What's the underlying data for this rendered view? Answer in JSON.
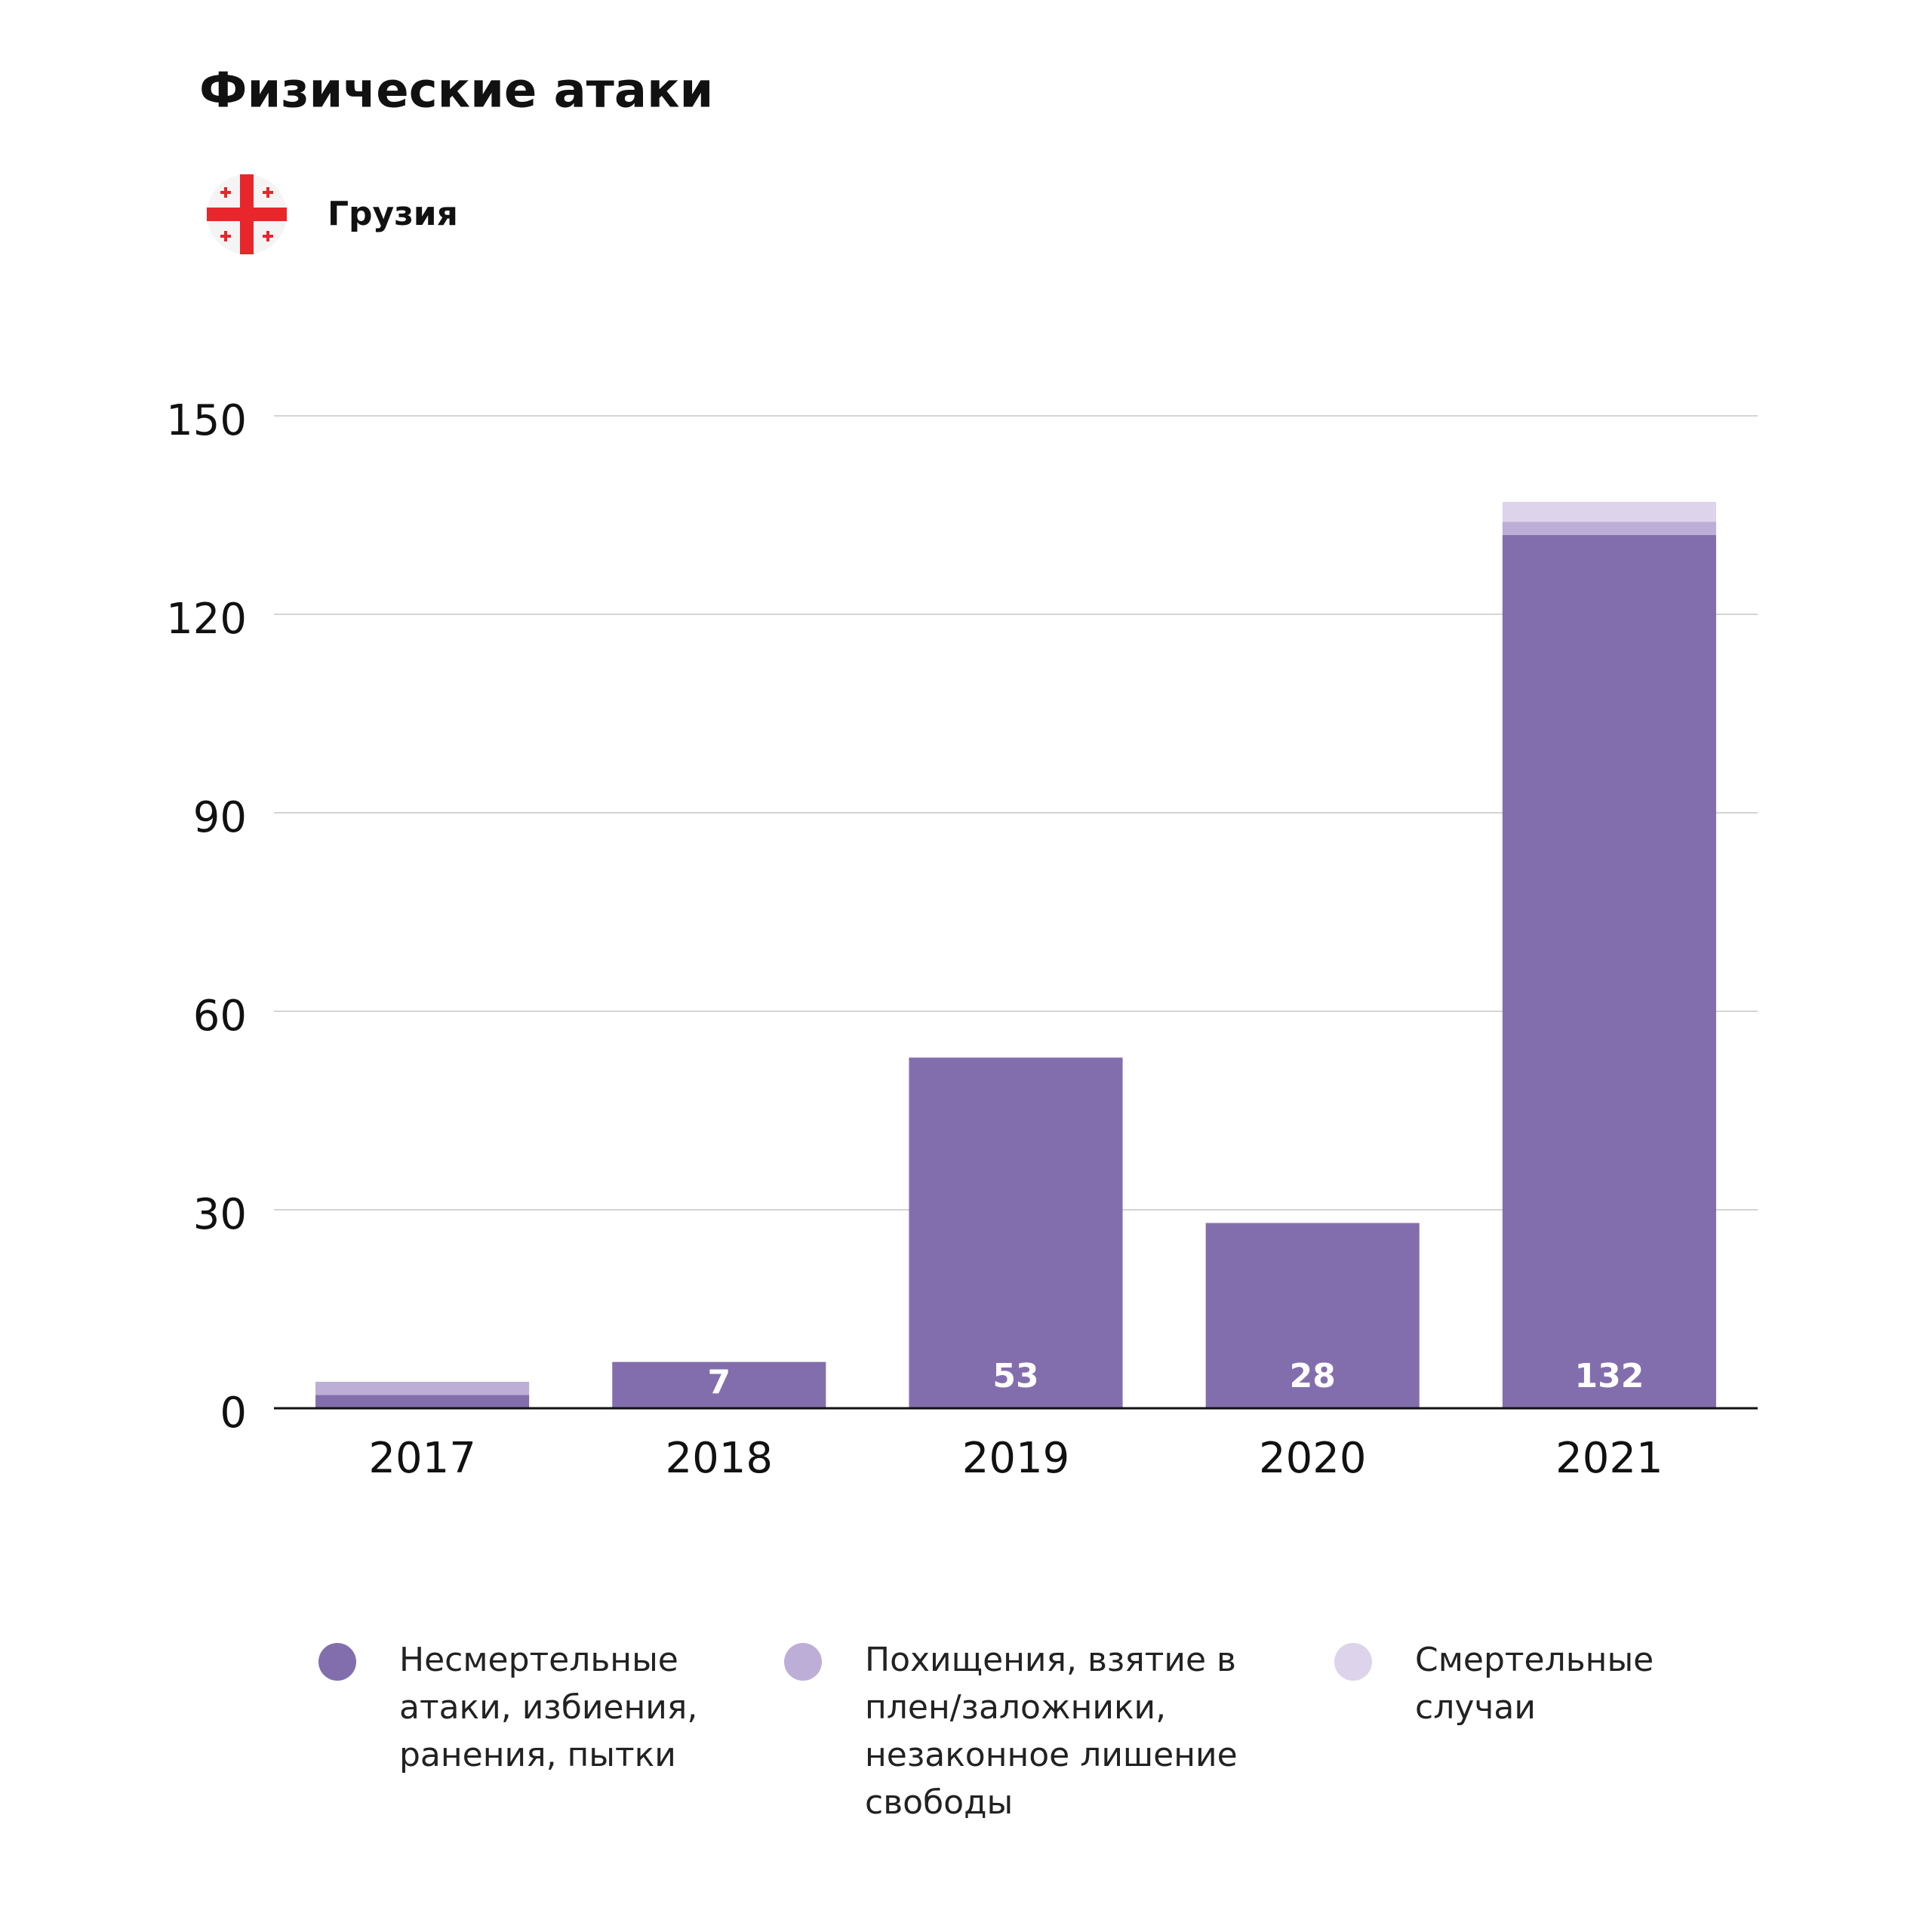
{
  "chart_data": {
    "type": "stacked_bar",
    "title": "Физические атаки",
    "subtitle": "Грузия",
    "categories": [
      "2017",
      "2018",
      "2019",
      "2020",
      "2021"
    ],
    "series": [
      {
        "name": "Несмертельные атаки, избиения, ранения, пытки",
        "color": "#836ead",
        "values": [
          2,
          7,
          53,
          28,
          132
        ],
        "data_labels": true
      },
      {
        "name": "Похищения, взятие в плен/заложники, незаконное лишение свободы",
        "color": "#bcaed6",
        "values": [
          2,
          0,
          0,
          0,
          2
        ]
      },
      {
        "name": "Смертельные случаи",
        "color": "#ddd3ea",
        "values": [
          0,
          0,
          0,
          0,
          3
        ]
      }
    ],
    "ylim": [
      0,
      150
    ],
    "yticks": [
      0,
      30,
      60,
      90,
      120,
      150
    ],
    "grid": true
  }
}
